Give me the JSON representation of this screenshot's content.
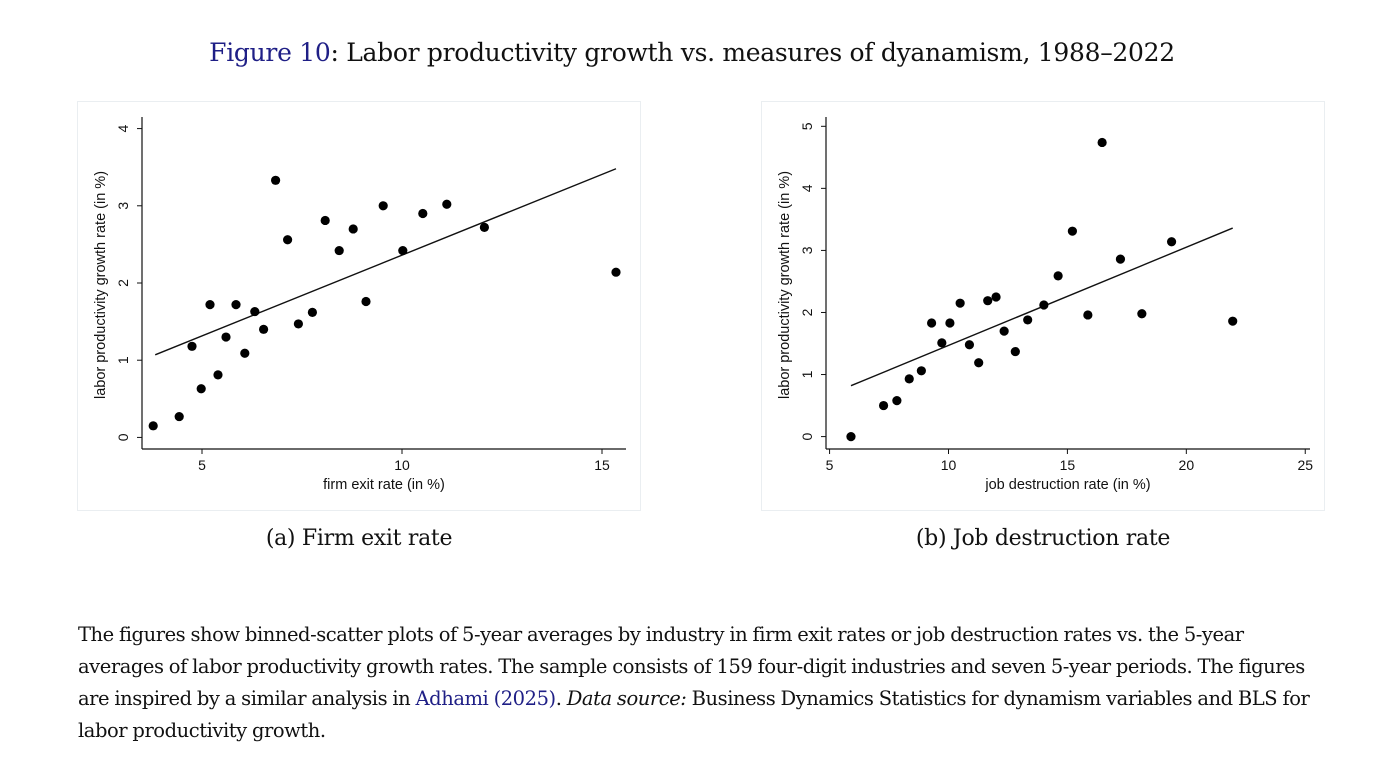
{
  "figure": {
    "label": "Figure 10",
    "title_rest": ": Labor productivity growth vs. measures of dyanamism, 1988–2022",
    "accent_color": "#1f1f86"
  },
  "panels": [
    {
      "subcaption": "(a) Firm exit rate"
    },
    {
      "subcaption": "(b) Job destruction rate"
    }
  ],
  "caption": {
    "part1": "The figures show binned-scatter plots of 5-year averages by industry in firm exit rates or job destruction rates vs. the 5-year averages of labor productivity growth rates. The sample consists of 159 four-digit industries and seven 5-year periods. The figures are inspired by a similar analysis in ",
    "citation": "Adhami (2025)",
    "part2": ". ",
    "data_source_label": "Data source:",
    "part3": " Business Dynamics Statistics for dynamism variables and BLS for labor productivity growth."
  },
  "chart_data": [
    {
      "type": "scatter",
      "title": "(a) Firm exit rate",
      "xlabel": "firm exit rate (in %)",
      "ylabel": "labor productivity growth rate (in %)",
      "xlim": [
        3.5,
        15.6
      ],
      "ylim": [
        -0.15,
        4.15
      ],
      "xticks": [
        5,
        10,
        15
      ],
      "yticks": [
        0,
        1,
        2,
        3,
        4
      ],
      "grid": false,
      "legend": "none",
      "points": [
        [
          3.78,
          0.15
        ],
        [
          4.43,
          0.27
        ],
        [
          4.75,
          1.18
        ],
        [
          4.98,
          0.63
        ],
        [
          5.2,
          1.72
        ],
        [
          5.4,
          0.81
        ],
        [
          5.6,
          1.3
        ],
        [
          5.85,
          1.72
        ],
        [
          6.07,
          1.09
        ],
        [
          6.32,
          1.63
        ],
        [
          6.54,
          1.4
        ],
        [
          6.84,
          3.33
        ],
        [
          7.14,
          2.56
        ],
        [
          7.41,
          1.47
        ],
        [
          7.76,
          1.62
        ],
        [
          8.08,
          2.81
        ],
        [
          8.43,
          2.42
        ],
        [
          8.78,
          2.7
        ],
        [
          9.1,
          1.76
        ],
        [
          9.53,
          3.0
        ],
        [
          10.02,
          2.42
        ],
        [
          10.52,
          2.9
        ],
        [
          11.12,
          3.02
        ],
        [
          12.06,
          2.72
        ],
        [
          15.35,
          2.14
        ]
      ],
      "fit_line": [
        [
          3.83,
          1.07
        ],
        [
          15.35,
          3.48
        ]
      ]
    },
    {
      "type": "scatter",
      "title": "(b) Job destruction rate",
      "xlabel": "job destruction rate (in %)",
      "ylabel": "labor productivity growth rate (in %)",
      "xlim": [
        4.85,
        25.2
      ],
      "ylim": [
        -0.2,
        5.15
      ],
      "xticks": [
        5,
        10,
        15,
        20,
        25
      ],
      "yticks": [
        0,
        1,
        2,
        3,
        4,
        5
      ],
      "grid": false,
      "legend": "none",
      "points": [
        [
          5.9,
          0.0
        ],
        [
          7.27,
          0.5
        ],
        [
          7.83,
          0.58
        ],
        [
          8.35,
          0.93
        ],
        [
          8.86,
          1.06
        ],
        [
          9.29,
          1.83
        ],
        [
          9.72,
          1.51
        ],
        [
          10.06,
          1.83
        ],
        [
          10.49,
          2.15
        ],
        [
          10.88,
          1.48
        ],
        [
          11.27,
          1.19
        ],
        [
          11.65,
          2.19
        ],
        [
          12.0,
          2.25
        ],
        [
          12.34,
          1.7
        ],
        [
          12.81,
          1.37
        ],
        [
          13.33,
          1.88
        ],
        [
          14.01,
          2.12
        ],
        [
          14.61,
          2.59
        ],
        [
          15.21,
          3.31
        ],
        [
          15.86,
          1.96
        ],
        [
          16.46,
          4.74
        ],
        [
          17.23,
          2.86
        ],
        [
          18.13,
          1.98
        ],
        [
          19.38,
          3.14
        ],
        [
          21.95,
          1.86
        ]
      ],
      "fit_line": [
        [
          5.9,
          0.82
        ],
        [
          21.95,
          3.36
        ]
      ]
    }
  ]
}
